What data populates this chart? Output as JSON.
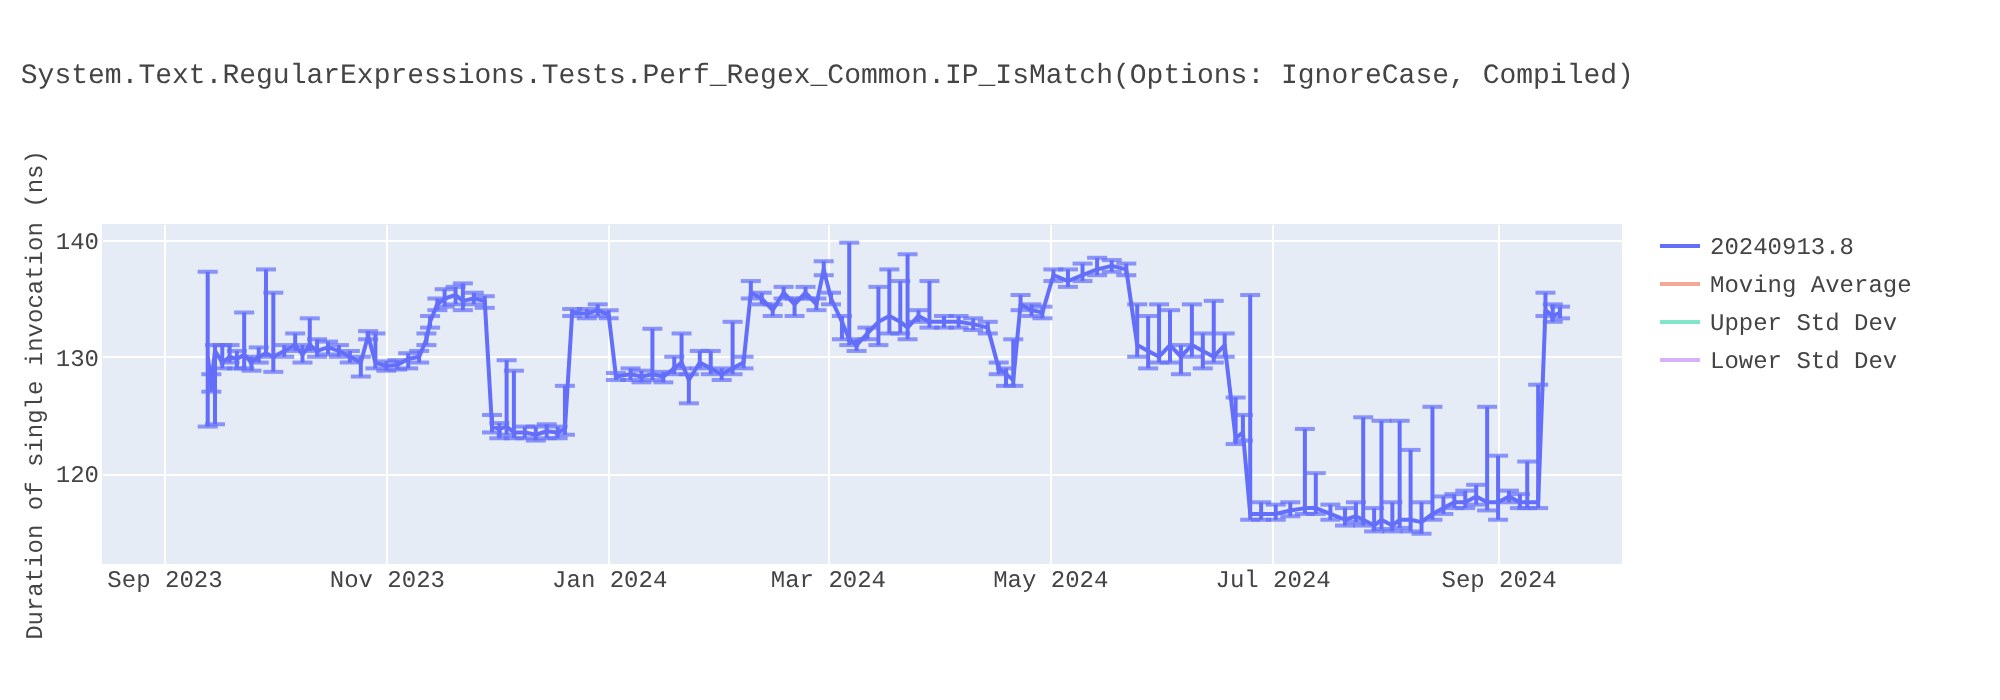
{
  "chart_data": {
    "type": "line",
    "title": "System.Text.RegularExpressions.Tests.Perf_Regex_Common.IP_IsMatch(Options: IgnoreCase, Compiled)",
    "ylabel": "Duration of single invocation (ns)",
    "x": [
      "2023-09-13",
      "2023-09-14",
      "2023-09-15",
      "2023-09-17",
      "2023-09-19",
      "2023-09-21",
      "2023-09-23",
      "2023-09-25",
      "2023-09-27",
      "2023-09-29",
      "2023-10-01",
      "2023-10-04",
      "2023-10-07",
      "2023-10-09",
      "2023-10-11",
      "2023-10-13",
      "2023-10-16",
      "2023-10-19",
      "2023-10-22",
      "2023-10-25",
      "2023-10-27",
      "2023-10-29",
      "2023-11-01",
      "2023-11-04",
      "2023-11-07",
      "2023-11-10",
      "2023-11-12",
      "2023-11-13",
      "2023-11-15",
      "2023-11-17",
      "2023-11-20",
      "2023-11-22",
      "2023-11-25",
      "2023-11-28",
      "2023-11-30",
      "2023-12-02",
      "2023-12-04",
      "2023-12-06",
      "2023-12-09",
      "2023-12-12",
      "2023-12-15",
      "2023-12-18",
      "2023-12-20",
      "2023-12-22",
      "2023-12-26",
      "2023-12-29",
      "2024-01-01",
      "2024-01-03",
      "2024-01-07",
      "2024-01-10",
      "2024-01-13",
      "2024-01-16",
      "2024-01-19",
      "2024-01-21",
      "2024-01-23",
      "2024-01-26",
      "2024-01-29",
      "2024-02-01",
      "2024-02-04",
      "2024-02-07",
      "2024-02-09",
      "2024-02-12",
      "2024-02-15",
      "2024-02-18",
      "2024-02-21",
      "2024-02-24",
      "2024-02-27",
      "2024-02-29",
      "2024-03-02",
      "2024-03-05",
      "2024-03-07",
      "2024-03-09",
      "2024-03-12",
      "2024-03-15",
      "2024-03-18",
      "2024-03-21",
      "2024-03-23",
      "2024-03-26",
      "2024-03-29",
      "2024-04-02",
      "2024-04-06",
      "2024-04-10",
      "2024-04-14",
      "2024-04-17",
      "2024-04-19",
      "2024-04-21",
      "2024-04-23",
      "2024-04-26",
      "2024-04-29",
      "2024-05-02",
      "2024-05-06",
      "2024-05-10",
      "2024-05-14",
      "2024-05-18",
      "2024-05-22",
      "2024-05-25",
      "2024-05-28",
      "2024-05-31",
      "2024-06-03",
      "2024-06-06",
      "2024-06-09",
      "2024-06-12",
      "2024-06-15",
      "2024-06-18",
      "2024-06-21",
      "2024-06-23",
      "2024-06-25",
      "2024-06-28",
      "2024-07-02",
      "2024-07-06",
      "2024-07-10",
      "2024-07-13",
      "2024-07-17",
      "2024-07-21",
      "2024-07-24",
      "2024-07-26",
      "2024-07-29",
      "2024-07-31",
      "2024-08-03",
      "2024-08-05",
      "2024-08-08",
      "2024-08-11",
      "2024-08-14",
      "2024-08-17",
      "2024-08-20",
      "2024-08-23",
      "2024-08-26",
      "2024-08-29",
      "2024-09-01",
      "2024-09-04",
      "2024-09-07",
      "2024-09-09",
      "2024-09-12",
      "2024-09-14",
      "2024-09-16",
      "2024-09-18"
    ],
    "series": [
      {
        "name": "20240913.8",
        "color": "#636efa",
        "values": [
          130,
          127.8,
          130.5,
          129.5,
          130,
          129.8,
          130.2,
          129.5,
          130,
          130.3,
          130,
          130.5,
          131,
          130.2,
          131,
          130.5,
          130.8,
          130.5,
          130,
          129.5,
          131.8,
          129.5,
          129.2,
          129.3,
          129.8,
          130,
          131.5,
          133,
          134.5,
          135,
          135.3,
          134.8,
          135,
          134.8,
          124,
          123.8,
          124,
          123.5,
          123.5,
          123.3,
          123.6,
          123.5,
          123.8,
          133.8,
          133.7,
          134,
          133.6,
          128.3,
          128.5,
          128.3,
          128.5,
          128.3,
          129,
          129.5,
          128,
          129.5,
          129,
          128.5,
          129,
          129.5,
          135.5,
          135,
          134,
          135.5,
          134.5,
          135.5,
          134.5,
          137.5,
          135,
          133,
          131.5,
          131,
          132,
          133,
          133.5,
          133,
          132.5,
          133.5,
          133,
          133,
          133,
          132.8,
          132.5,
          129,
          128.5,
          128,
          134.5,
          134,
          133.8,
          137,
          136.5,
          137,
          137.5,
          137.8,
          137.5,
          131,
          130.5,
          130,
          131,
          130,
          131,
          130.5,
          130,
          131,
          123,
          123.5,
          116.5,
          116.5,
          116.5,
          116.8,
          117,
          117,
          116.5,
          116,
          116.3,
          116,
          115.5,
          116,
          115.5,
          116,
          116,
          115.8,
          116.5,
          117,
          117.5,
          117.5,
          118,
          117.5,
          117.5,
          118,
          117.5,
          117.5,
          117.5,
          134,
          133.5,
          133.8
        ],
        "errors": [
          [
            124,
            137.3
          ],
          [
            127,
            128.5
          ],
          [
            124.2,
            131
          ],
          [
            129,
            131
          ],
          [
            129.5,
            131
          ],
          [
            129,
            130.5
          ],
          [
            129,
            133.8
          ],
          [
            128.8,
            130
          ],
          [
            129.5,
            130.8
          ],
          [
            130,
            137.5
          ],
          [
            128.7,
            135.5
          ],
          [
            130,
            131
          ],
          [
            130.5,
            132
          ],
          [
            129.5,
            131
          ],
          [
            130.5,
            133.3
          ],
          [
            130,
            131.5
          ],
          [
            130.2,
            131.3
          ],
          [
            130,
            131
          ],
          [
            129.5,
            130.5
          ],
          [
            128.3,
            130
          ],
          [
            131.5,
            132.2
          ],
          [
            129,
            132
          ],
          [
            128.8,
            129.6
          ],
          [
            128.9,
            129.7
          ],
          [
            129,
            130.3
          ],
          [
            129.5,
            130.5
          ],
          [
            131,
            132
          ],
          [
            132.5,
            133.5
          ],
          [
            134,
            135
          ],
          [
            134.3,
            135.8
          ],
          [
            134.5,
            136
          ],
          [
            134,
            136.3
          ],
          [
            134.5,
            135.5
          ],
          [
            134.2,
            135.2
          ],
          [
            123.5,
            125
          ],
          [
            123,
            124.3
          ],
          [
            123.3,
            129.7
          ],
          [
            123,
            128.8
          ],
          [
            123,
            124
          ],
          [
            122.8,
            124
          ],
          [
            123,
            124.2
          ],
          [
            123,
            124
          ],
          [
            123.3,
            127.5
          ],
          [
            133.5,
            134.1
          ],
          [
            133.3,
            134.1
          ],
          [
            133.5,
            134.5
          ],
          [
            133.3,
            134
          ],
          [
            128,
            128.6
          ],
          [
            128,
            129
          ],
          [
            127.8,
            128.8
          ],
          [
            128,
            132.4
          ],
          [
            127.8,
            128.7
          ],
          [
            128.5,
            130
          ],
          [
            129,
            132
          ],
          [
            126,
            128.5
          ],
          [
            129,
            130.5
          ],
          [
            128.5,
            130.5
          ],
          [
            128,
            129
          ],
          [
            128.5,
            133
          ],
          [
            129,
            130
          ],
          [
            135,
            136.5
          ],
          [
            134.5,
            135.5
          ],
          [
            133.5,
            134.5
          ],
          [
            135,
            136
          ],
          [
            133.5,
            135
          ],
          [
            135,
            136
          ],
          [
            134,
            135
          ],
          [
            137,
            138.2
          ],
          [
            134.5,
            135.5
          ],
          [
            131.5,
            133.5
          ],
          [
            131,
            139.8
          ],
          [
            130.5,
            131.5
          ],
          [
            131.5,
            132.5
          ],
          [
            131,
            136
          ],
          [
            132,
            137.5
          ],
          [
            132,
            136.5
          ],
          [
            131.5,
            138.8
          ],
          [
            133,
            134
          ],
          [
            132.5,
            136.5
          ],
          [
            132.5,
            133.5
          ],
          [
            132.5,
            133.5
          ],
          [
            132.3,
            133.3
          ],
          [
            132,
            133
          ],
          [
            128.5,
            129.5
          ],
          [
            127.5,
            129
          ],
          [
            127.5,
            131.5
          ],
          [
            134,
            135.3
          ],
          [
            133.5,
            134.5
          ],
          [
            133.3,
            134.3
          ],
          [
            136.5,
            137.5
          ],
          [
            136,
            137.5
          ],
          [
            136.5,
            138
          ],
          [
            137,
            138.5
          ],
          [
            137.3,
            138.3
          ],
          [
            137,
            138
          ],
          [
            130,
            134.5
          ],
          [
            129,
            133.5
          ],
          [
            129.5,
            134.5
          ],
          [
            129.5,
            134
          ],
          [
            128.5,
            131
          ],
          [
            130,
            134.5
          ],
          [
            129,
            132
          ],
          [
            129.5,
            134.8
          ],
          [
            130,
            132
          ],
          [
            122.5,
            126.5
          ],
          [
            122.8,
            125
          ],
          [
            116,
            135.3
          ],
          [
            116,
            117.5
          ],
          [
            116,
            117.3
          ],
          [
            116.3,
            117.5
          ],
          [
            116.5,
            123.8
          ],
          [
            116.5,
            120
          ],
          [
            116,
            117.3
          ],
          [
            115.5,
            117
          ],
          [
            115.8,
            117.5
          ],
          [
            115.5,
            124.8
          ],
          [
            115,
            117
          ],
          [
            115.2,
            124.5
          ],
          [
            115,
            117.5
          ],
          [
            115.3,
            124.5
          ],
          [
            115,
            122
          ],
          [
            114.8,
            117.5
          ],
          [
            116,
            125.7
          ],
          [
            116.5,
            118
          ],
          [
            117,
            118.2
          ],
          [
            117,
            118.5
          ],
          [
            117.3,
            119
          ],
          [
            116.8,
            125.7
          ],
          [
            116,
            121.5
          ],
          [
            117.5,
            118.5
          ],
          [
            117,
            118.2
          ],
          [
            117,
            121
          ],
          [
            117,
            127.6
          ],
          [
            133.5,
            135.5
          ],
          [
            133,
            134.5
          ],
          [
            133.3,
            134.3
          ]
        ]
      },
      {
        "name": "Moving Average",
        "color": "#f5a898",
        "values": [
          null,
          null,
          null,
          null,
          null,
          null,
          null,
          null,
          null,
          null,
          null,
          null,
          null,
          null,
          null,
          null,
          null,
          null,
          null,
          null,
          null,
          null,
          null,
          null,
          null,
          null,
          null,
          null,
          null,
          null,
          null,
          null,
          null,
          null,
          null,
          null,
          null,
          null,
          null,
          null,
          null,
          null,
          null,
          null,
          null,
          null,
          null,
          null,
          null,
          null,
          null,
          null,
          null,
          null,
          null,
          null,
          null,
          null,
          null,
          null,
          null,
          null,
          null,
          null,
          null,
          null,
          null,
          null,
          null,
          null,
          null,
          null,
          null,
          null,
          null,
          null,
          null,
          null,
          null,
          null,
          null,
          null,
          null,
          null,
          null,
          null,
          null,
          null,
          null,
          null,
          null,
          null,
          null,
          null,
          null,
          null,
          null,
          null,
          null,
          null,
          null,
          null,
          null,
          null,
          null,
          null,
          null,
          null,
          null,
          null,
          null,
          null,
          null,
          null,
          null,
          null,
          null,
          null,
          null,
          null,
          null,
          null,
          null,
          null,
          null,
          null,
          null,
          null,
          null,
          null,
          null,
          null,
          null,
          null,
          null,
          null
        ]
      },
      {
        "name": "Upper Std Dev",
        "color": "#80e5cb",
        "values": [
          null,
          null,
          null,
          null,
          null,
          null,
          null,
          null,
          null,
          null,
          null,
          null,
          null,
          null,
          null,
          null,
          null,
          null,
          null,
          null,
          null,
          null,
          null,
          null,
          null,
          null,
          null,
          null,
          null,
          null,
          null,
          null,
          null,
          null,
          null,
          null,
          null,
          null,
          null,
          null,
          null,
          null,
          null,
          null,
          null,
          null,
          null,
          null,
          null,
          null,
          null,
          null,
          null,
          null,
          null,
          null,
          null,
          null,
          null,
          null,
          null,
          null,
          null,
          null,
          null,
          null,
          null,
          null,
          null,
          null,
          null,
          null,
          null,
          null,
          null,
          null,
          null,
          null,
          null,
          null,
          null,
          null,
          null,
          null,
          null,
          null,
          null,
          null,
          null,
          null,
          null,
          null,
          null,
          null,
          null,
          null,
          null,
          null,
          null,
          null,
          null,
          null,
          null,
          null,
          null,
          null,
          null,
          null,
          null,
          null,
          null,
          null,
          null,
          null,
          null,
          null,
          null,
          null,
          null,
          null,
          null,
          null,
          null,
          null,
          null,
          null,
          null,
          null,
          null,
          null,
          null,
          null,
          null,
          null,
          null,
          null
        ]
      },
      {
        "name": "Lower Std Dev",
        "color": "#d5b1fc",
        "values": [
          null,
          null,
          null,
          null,
          null,
          null,
          null,
          null,
          null,
          null,
          null,
          null,
          null,
          null,
          null,
          null,
          null,
          null,
          null,
          null,
          null,
          null,
          null,
          null,
          null,
          null,
          null,
          null,
          null,
          null,
          null,
          null,
          null,
          null,
          null,
          null,
          null,
          null,
          null,
          null,
          null,
          null,
          null,
          null,
          null,
          null,
          null,
          null,
          null,
          null,
          null,
          null,
          null,
          null,
          null,
          null,
          null,
          null,
          null,
          null,
          null,
          null,
          null,
          null,
          null,
          null,
          null,
          null,
          null,
          null,
          null,
          null,
          null,
          null,
          null,
          null,
          null,
          null,
          null,
          null,
          null,
          null,
          null,
          null,
          null,
          null,
          null,
          null,
          null,
          null,
          null,
          null,
          null,
          null,
          null,
          null,
          null,
          null,
          null,
          null,
          null,
          null,
          null,
          null,
          null,
          null,
          null,
          null,
          null,
          null,
          null,
          null,
          null,
          null,
          null,
          null,
          null,
          null,
          null,
          null,
          null,
          null,
          null,
          null,
          null,
          null,
          null,
          null,
          null,
          null,
          null,
          null,
          null,
          null,
          null,
          null
        ]
      }
    ],
    "xlim": [
      "2023-08-15",
      "2024-10-05"
    ],
    "xticks": [
      {
        "value": "2023-09-01",
        "label": "Sep 2023"
      },
      {
        "value": "2023-11-01",
        "label": "Nov 2023"
      },
      {
        "value": "2024-01-01",
        "label": "Jan 2024"
      },
      {
        "value": "2024-03-01",
        "label": "Mar 2024"
      },
      {
        "value": "2024-05-01",
        "label": "May 2024"
      },
      {
        "value": "2024-07-01",
        "label": "Jul 2024"
      },
      {
        "value": "2024-09-01",
        "label": "Sep 2024"
      }
    ],
    "ylim": [
      112.2,
      141.4
    ],
    "yticks": [
      120,
      130,
      140
    ],
    "grid": true,
    "legend": "right",
    "marker": "none",
    "line_style": "solid"
  }
}
